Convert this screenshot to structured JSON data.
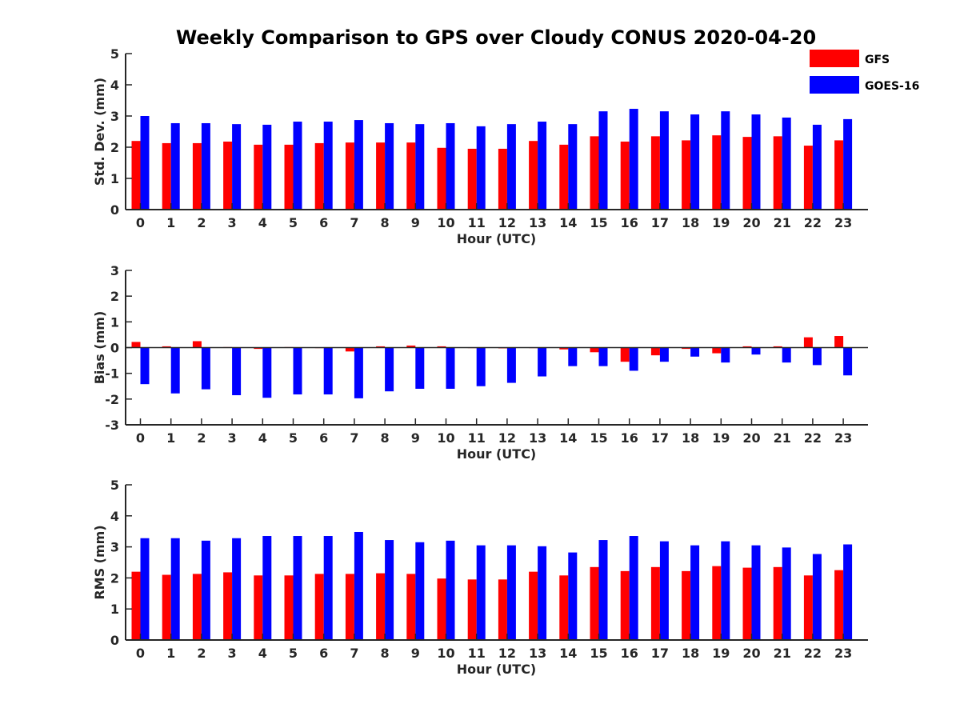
{
  "figure": {
    "title": "Weekly Comparison to GPS over Cloudy CONUS 2020-04-20"
  },
  "legend": {
    "placement": "top-right",
    "items": [
      {
        "label": "GFS",
        "color": "#ff0000"
      },
      {
        "label": "GOES-16",
        "color": "#0000ff"
      }
    ]
  },
  "chart_data": [
    {
      "type": "bar",
      "title": "Weekly Comparison to GPS over Cloudy CONUS 2020-04-20",
      "xlabel": "Hour (UTC)",
      "ylabel": "Std. Dev. (mm)",
      "ylim": [
        0,
        5
      ],
      "yticks": [
        0,
        1,
        2,
        3,
        4,
        5
      ],
      "grid": false,
      "categories": [
        "0",
        "1",
        "2",
        "3",
        "4",
        "5",
        "6",
        "7",
        "8",
        "9",
        "10",
        "11",
        "12",
        "13",
        "14",
        "15",
        "16",
        "17",
        "18",
        "19",
        "20",
        "21",
        "22",
        "23"
      ],
      "series": [
        {
          "name": "GFS",
          "color": "#ff0000",
          "values": [
            2.2,
            2.13,
            2.13,
            2.18,
            2.08,
            2.08,
            2.13,
            2.15,
            2.15,
            2.15,
            1.98,
            1.95,
            1.95,
            2.2,
            2.08,
            2.35,
            2.18,
            2.35,
            2.22,
            2.38,
            2.33,
            2.35,
            2.05,
            2.22
          ]
        },
        {
          "name": "GOES-16",
          "color": "#0000ff",
          "values": [
            3.0,
            2.77,
            2.77,
            2.74,
            2.72,
            2.82,
            2.82,
            2.87,
            2.77,
            2.74,
            2.77,
            2.67,
            2.74,
            2.82,
            2.74,
            3.15,
            3.23,
            3.15,
            3.05,
            3.15,
            3.05,
            2.95,
            2.72,
            2.9
          ]
        }
      ]
    },
    {
      "type": "bar",
      "xlabel": "Hour (UTC)",
      "ylabel": "Bias (mm)",
      "ylim": [
        -3,
        3
      ],
      "yticks": [
        -3,
        -2,
        -1,
        0,
        1,
        2,
        3
      ],
      "grid": false,
      "categories": [
        "0",
        "1",
        "2",
        "3",
        "4",
        "5",
        "6",
        "7",
        "8",
        "9",
        "10",
        "11",
        "12",
        "13",
        "14",
        "15",
        "16",
        "17",
        "18",
        "19",
        "20",
        "21",
        "22",
        "23"
      ],
      "series": [
        {
          "name": "GFS",
          "color": "#ff0000",
          "values": [
            0.22,
            0.05,
            0.25,
            0.02,
            -0.05,
            0.02,
            -0.02,
            -0.15,
            0.05,
            0.08,
            0.05,
            -0.02,
            -0.03,
            -0.02,
            -0.07,
            -0.18,
            -0.55,
            -0.3,
            -0.05,
            -0.22,
            0.05,
            0.05,
            0.4,
            0.45
          ]
        },
        {
          "name": "GOES-16",
          "color": "#0000ff",
          "values": [
            -1.42,
            -1.78,
            -1.62,
            -1.85,
            -1.95,
            -1.82,
            -1.82,
            -1.97,
            -1.7,
            -1.6,
            -1.6,
            -1.5,
            -1.37,
            -1.12,
            -0.72,
            -0.72,
            -0.9,
            -0.55,
            -0.35,
            -0.58,
            -0.27,
            -0.58,
            -0.68,
            -1.08
          ]
        }
      ]
    },
    {
      "type": "bar",
      "xlabel": "Hour (UTC)",
      "ylabel": "RMS (mm)",
      "ylim": [
        0,
        5
      ],
      "yticks": [
        0,
        1,
        2,
        3,
        4,
        5
      ],
      "grid": false,
      "categories": [
        "0",
        "1",
        "2",
        "3",
        "4",
        "5",
        "6",
        "7",
        "8",
        "9",
        "10",
        "11",
        "12",
        "13",
        "14",
        "15",
        "16",
        "17",
        "18",
        "19",
        "20",
        "21",
        "22",
        "23"
      ],
      "series": [
        {
          "name": "GFS",
          "color": "#ff0000",
          "values": [
            2.2,
            2.1,
            2.13,
            2.18,
            2.08,
            2.08,
            2.13,
            2.13,
            2.15,
            2.13,
            1.98,
            1.95,
            1.95,
            2.2,
            2.08,
            2.35,
            2.22,
            2.35,
            2.22,
            2.38,
            2.33,
            2.35,
            2.08,
            2.25
          ]
        },
        {
          "name": "GOES-16",
          "color": "#0000ff",
          "values": [
            3.28,
            3.28,
            3.2,
            3.28,
            3.35,
            3.35,
            3.35,
            3.48,
            3.22,
            3.15,
            3.2,
            3.05,
            3.05,
            3.02,
            2.82,
            3.22,
            3.35,
            3.18,
            3.05,
            3.18,
            3.05,
            2.98,
            2.77,
            3.08
          ]
        }
      ]
    }
  ]
}
